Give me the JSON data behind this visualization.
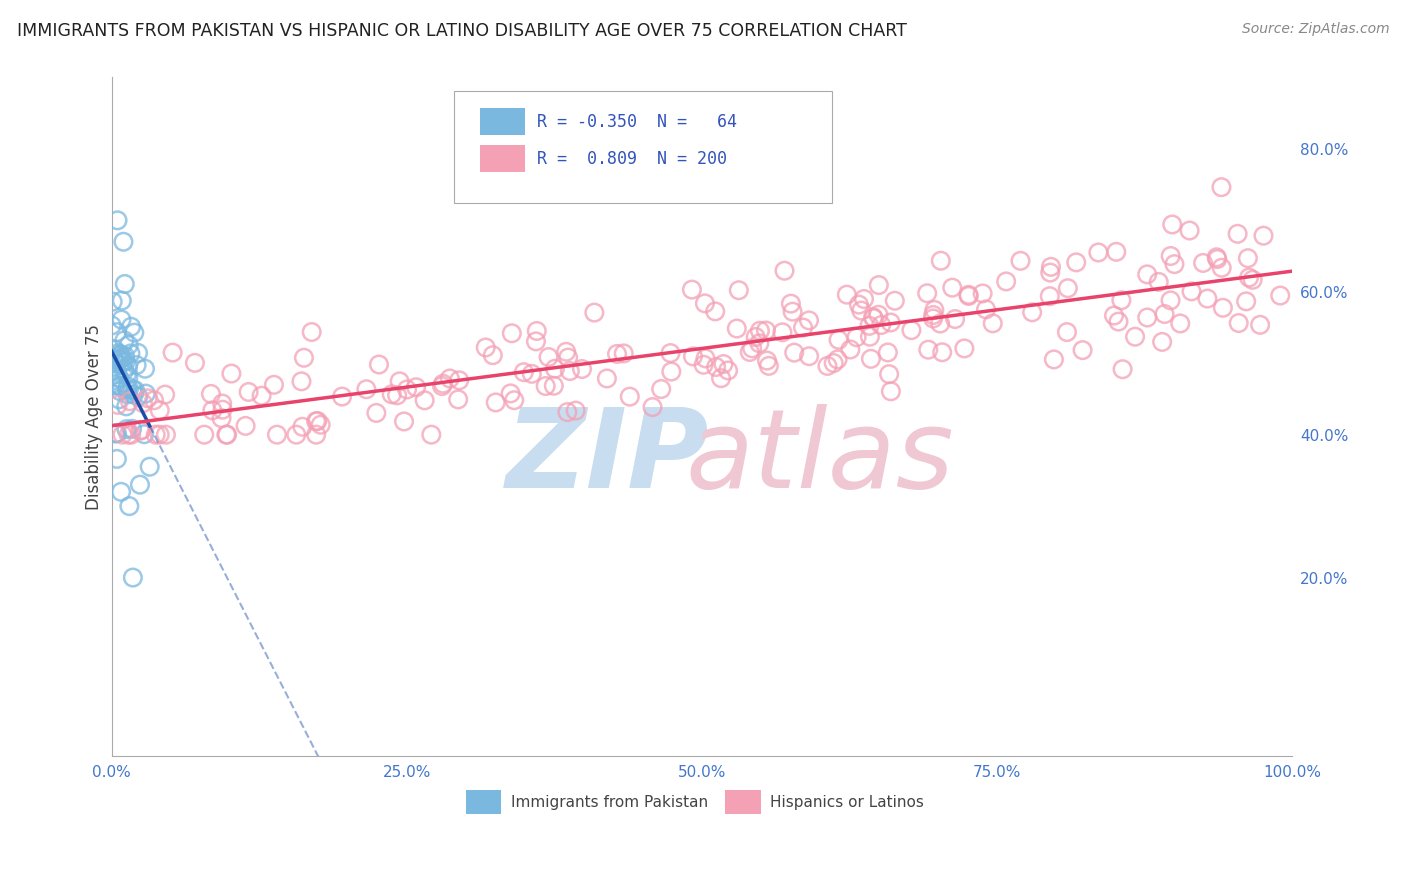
{
  "title": "IMMIGRANTS FROM PAKISTAN VS HISPANIC OR LATINO DISABILITY AGE OVER 75 CORRELATION CHART",
  "source": "Source: ZipAtlas.com",
  "ylabel": "Disability Age Over 75",
  "legend_label_1": "Immigrants from Pakistan",
  "legend_label_2": "Hispanics or Latinos",
  "r1": -0.35,
  "n1": 64,
  "r2": 0.809,
  "n2": 200,
  "color1": "#7ab8e0",
  "color2": "#f4a0b5",
  "line_color1": "#1a4eaa",
  "line_color2": "#e8436a",
  "background_color": "#ffffff",
  "grid_color": "#bbbbbb",
  "title_color": "#222222",
  "axis_label_color": "#444444",
  "tick_color": "#4477cc",
  "legend_text_color": "#3355bb",
  "watermark_zip_color": "#c8ddf0",
  "watermark_atlas_color": "#f0c8d4",
  "seed": 42,
  "xlim": [
    0.0,
    1.0
  ],
  "ylim": [
    -0.05,
    0.9
  ]
}
